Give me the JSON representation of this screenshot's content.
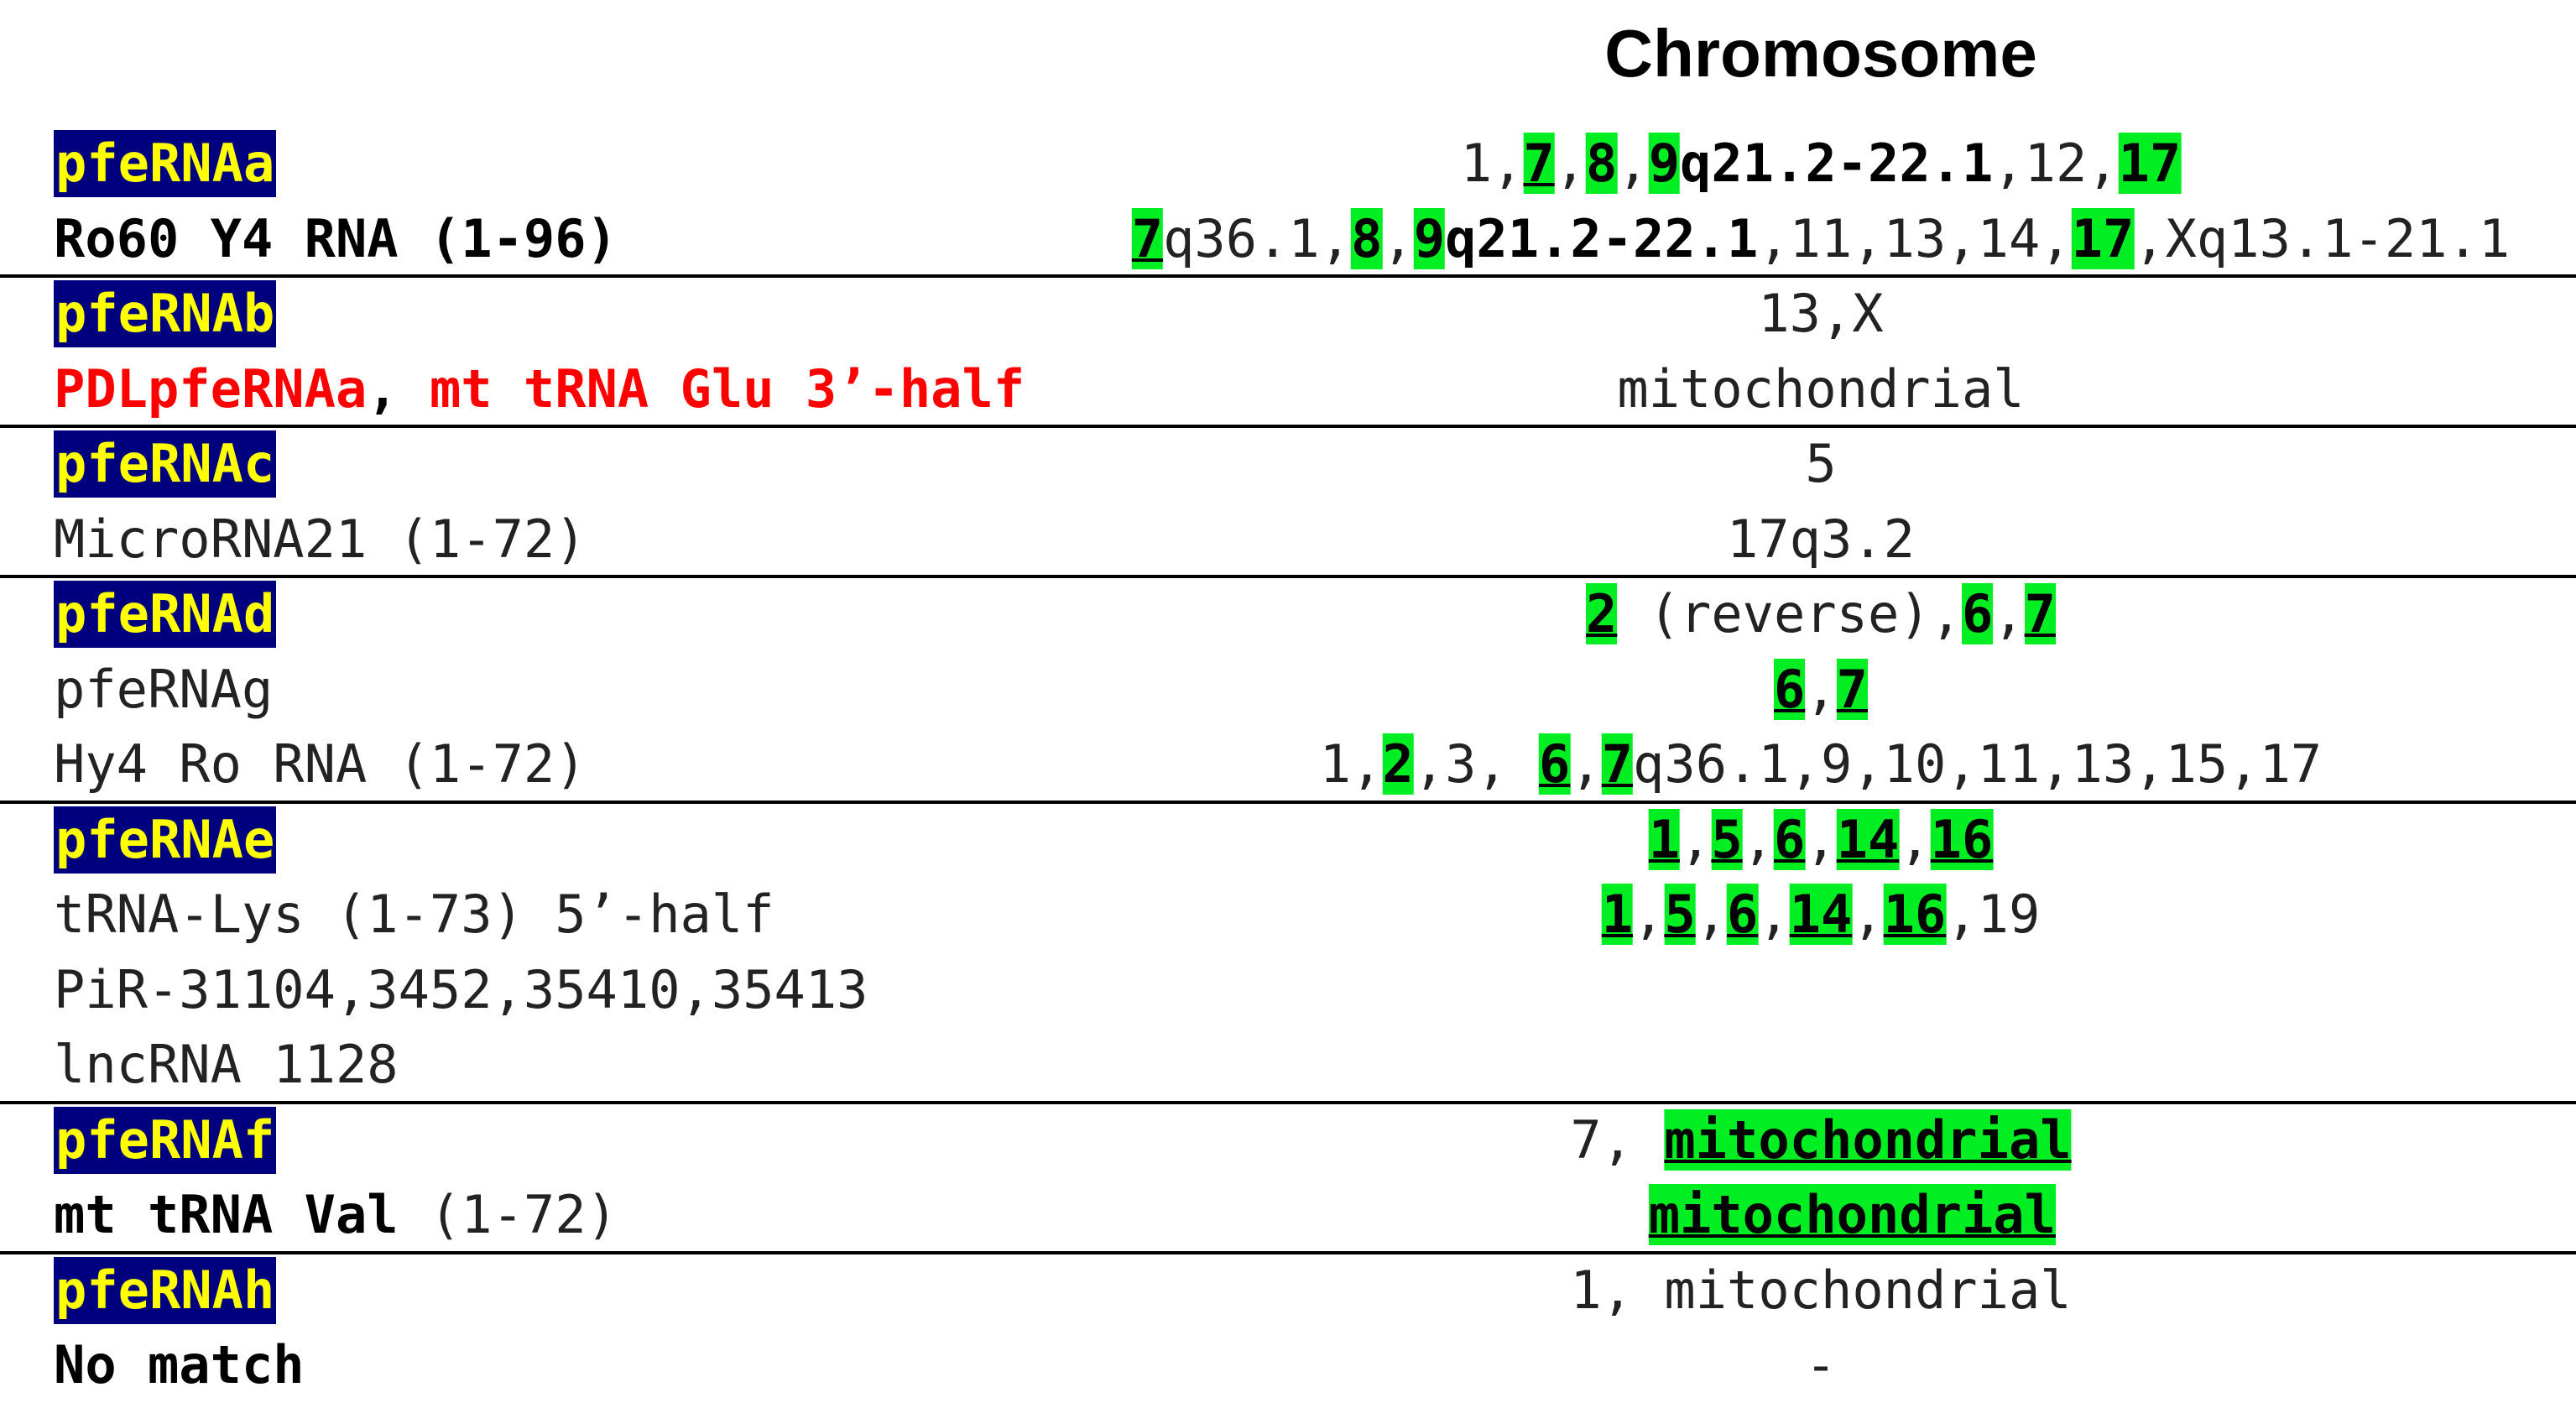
{
  "header": {
    "title": "Chromosome"
  },
  "rows": {
    "a_name": "pfeRNAa",
    "a_name_chr": [
      {
        "t": "1,"
      },
      {
        "t": "7",
        "hl": true,
        "u": true,
        "b": true
      },
      {
        "t": ","
      },
      {
        "t": "8",
        "hl": true,
        "b": true
      },
      {
        "t": ","
      },
      {
        "t": "9",
        "hl": true,
        "b": true
      },
      {
        "t": "q21.2-22.1",
        "b": true
      },
      {
        "t": ",12,"
      },
      {
        "t": "17",
        "hl": true,
        "b": true
      }
    ],
    "a_sub": "Ro60 Y4 RNA (1-96)",
    "a_sub_chr": [
      {
        "t": "7",
        "hl": true,
        "u": true,
        "b": true
      },
      {
        "t": "q36.1,"
      },
      {
        "t": "8",
        "hl": true,
        "b": true
      },
      {
        "t": ","
      },
      {
        "t": "9",
        "hl": true,
        "b": true
      },
      {
        "t": "q21.2-22.1",
        "b": true
      },
      {
        "t": ",11,13,14,"
      },
      {
        "t": "17",
        "hl": true,
        "b": true
      },
      {
        "t": ",Xq13.1-21.1"
      }
    ],
    "b_name": "pfeRNAb",
    "b_name_chr": [
      {
        "t": "13,X"
      }
    ],
    "b_sub_left": [
      {
        "t": "PDLpfeRNAa",
        "red": true,
        "b": true
      },
      {
        "t": ", ",
        "b": true
      },
      {
        "t": "mt tRNA Glu 3’-half",
        "red": true,
        "b": true
      }
    ],
    "b_sub_chr": [
      {
        "t": "mitochondrial"
      }
    ],
    "c_name": "pfeRNAc",
    "c_name_chr": [
      {
        "t": "5"
      }
    ],
    "c_sub": "MicroRNA21 (1-72)",
    "c_sub_chr": [
      {
        "t": "17q3.2"
      }
    ],
    "d_name": "pfeRNAd",
    "d_name_chr": [
      {
        "t": "2",
        "hl": true,
        "u": true,
        "b": true
      },
      {
        "t": " (reverse),"
      },
      {
        "t": "6",
        "hl": true,
        "b": true
      },
      {
        "t": ","
      },
      {
        "t": "7",
        "hl": true,
        "u": true,
        "b": true
      }
    ],
    "d_sub1": "pfeRNAg",
    "d_sub1_chr": [
      {
        "t": "6",
        "hl": true,
        "u": true,
        "b": true
      },
      {
        "t": ","
      },
      {
        "t": "7",
        "hl": true,
        "u": true,
        "b": true
      }
    ],
    "d_sub2": "Hy4 Ro RNA (1-72)",
    "d_sub2_chr": [
      {
        "t": "1,"
      },
      {
        "t": "2",
        "hl": true,
        "b": true
      },
      {
        "t": ",3, "
      },
      {
        "t": "6",
        "hl": true,
        "u": true,
        "b": true
      },
      {
        "t": ","
      },
      {
        "t": "7",
        "hl": true,
        "u": true,
        "b": true
      },
      {
        "t": "q36.1,9,10,11,13,15,17"
      }
    ],
    "e_name": "pfeRNAe",
    "e_name_chr": [
      {
        "t": "1",
        "hl": true,
        "u": true,
        "b": true
      },
      {
        "t": ","
      },
      {
        "t": "5",
        "hl": true,
        "u": true,
        "b": true
      },
      {
        "t": ","
      },
      {
        "t": "6",
        "hl": true,
        "u": true,
        "b": true
      },
      {
        "t": ","
      },
      {
        "t": "14",
        "hl": true,
        "u": true,
        "b": true
      },
      {
        "t": ","
      },
      {
        "t": "16",
        "hl": true,
        "u": true,
        "b": true
      }
    ],
    "e_sub1": "tRNA-Lys (1-73) 5’-half",
    "e_sub1_chr": [
      {
        "t": "1",
        "hl": true,
        "u": true,
        "b": true
      },
      {
        "t": ","
      },
      {
        "t": "5",
        "hl": true,
        "u": true,
        "b": true
      },
      {
        "t": ","
      },
      {
        "t": "6",
        "hl": true,
        "u": true,
        "b": true
      },
      {
        "t": ","
      },
      {
        "t": "14",
        "hl": true,
        "u": true,
        "b": true
      },
      {
        "t": ","
      },
      {
        "t": "16",
        "hl": true,
        "u": true,
        "b": true
      },
      {
        "t": ",19"
      }
    ],
    "e_sub2": "PiR-31104,3452,35410,35413",
    "e_sub3": "lncRNA 1128",
    "f_name": "pfeRNAf",
    "f_name_chr": [
      {
        "t": "7, "
      },
      {
        "t": "mitochondrial",
        "hl": true,
        "u": true,
        "b": true
      }
    ],
    "f_sub_left": [
      {
        "t": "mt tRNA Val",
        "b": true
      },
      {
        "t": " (1-72)"
      }
    ],
    "f_sub_chr": [
      {
        "t": "  "
      },
      {
        "t": "mitochondrial",
        "hl": true,
        "u": true,
        "b": true
      }
    ],
    "h_name": "pfeRNAh",
    "h_name_chr": [
      {
        "t": "1, mitochondrial"
      }
    ],
    "h_sub": "No match",
    "h_sub_chr": [
      {
        "t": "-"
      }
    ]
  }
}
